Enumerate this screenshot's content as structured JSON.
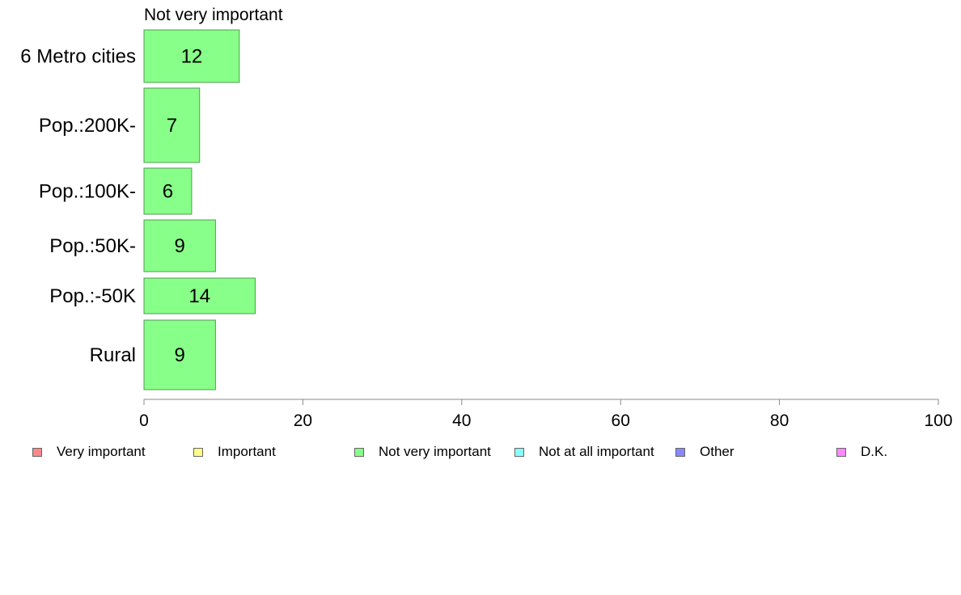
{
  "chart_data": {
    "type": "bar",
    "orientation": "horizontal",
    "title": "Not very important",
    "categories": [
      "6 Metro cities",
      "Pop.:200K-",
      "Pop.:100K-",
      "Pop.:50K-",
      "Pop.:-50K",
      "Rural"
    ],
    "values": [
      12,
      7,
      6,
      9,
      14,
      9
    ],
    "value_labels": [
      "12",
      "7",
      "6",
      "9",
      "14",
      "9"
    ],
    "xlim": [
      0,
      100
    ],
    "xticks": [
      "0",
      "20",
      "40",
      "60",
      "80",
      "100"
    ],
    "xlabel": "",
    "ylabel": "",
    "grid": false,
    "bar_color": "#88ff88",
    "bar_stroke": "#559955",
    "legend_position": "bottom",
    "legend": [
      {
        "label": "Very important",
        "color": "#ff8888"
      },
      {
        "label": "Important",
        "color": "#ffff88"
      },
      {
        "label": "Not very important",
        "color": "#88ff88"
      },
      {
        "label": "Not at all important",
        "color": "#88ffff"
      },
      {
        "label": "Other",
        "color": "#8888ff"
      },
      {
        "label": "D.K.",
        "color": "#ff88ff"
      }
    ]
  }
}
